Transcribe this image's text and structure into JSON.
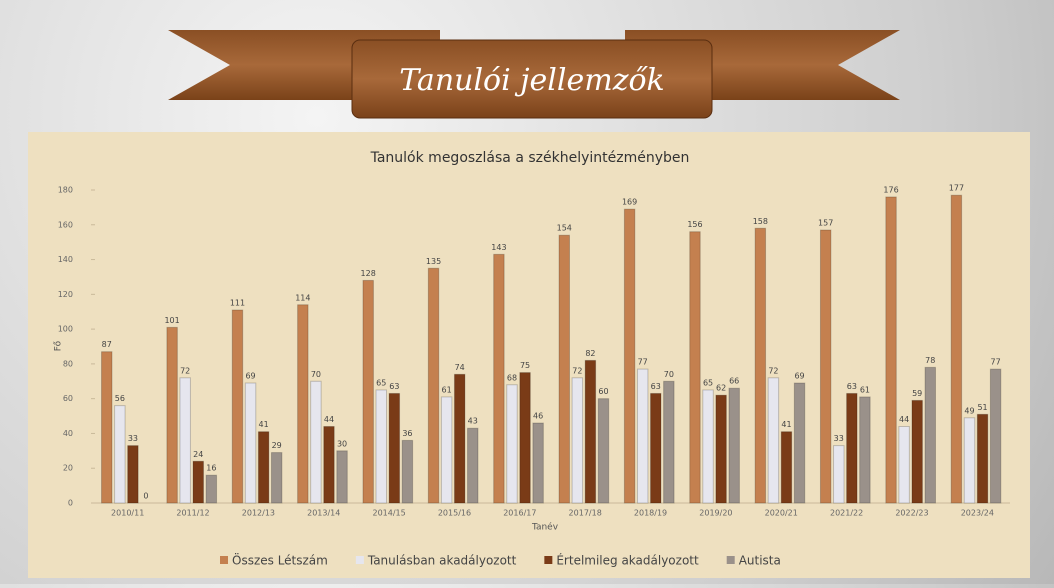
{
  "banner_title": "Tanulói jellemzők",
  "chart_data": {
    "type": "bar",
    "title": "Tanulók megoszlása a székhelyintézményben",
    "x_label": "Tanév",
    "y_label": "Fő",
    "categories": [
      "2010/11",
      "2011/12",
      "2012/13",
      "2013/14",
      "2014/15",
      "2015/16",
      "2016/17",
      "2017/18",
      "2018/19",
      "2019/20",
      "2020/21",
      "2021/22",
      "2022/23",
      "2023/24"
    ],
    "series": [
      {
        "name": "Összes Létszám",
        "color": "#c4804f",
        "values": [
          87,
          101,
          111,
          114,
          128,
          135,
          143,
          154,
          169,
          156,
          158,
          157,
          176,
          177
        ]
      },
      {
        "name": "Tanulásban akadályozott",
        "color": "#e6e6ee",
        "values": [
          56,
          72,
          69,
          70,
          65,
          61,
          68,
          72,
          77,
          65,
          72,
          33,
          44,
          49
        ]
      },
      {
        "name": "Értelmileg akadályozott",
        "color": "#7a3b17",
        "values": [
          33,
          24,
          41,
          44,
          63,
          74,
          75,
          82,
          63,
          62,
          41,
          63,
          59,
          51
        ]
      },
      {
        "name": "Autista",
        "color": "#9a918a",
        "values": [
          0,
          16,
          29,
          30,
          36,
          43,
          46,
          60,
          70,
          66,
          69,
          61,
          78,
          77
        ]
      }
    ],
    "ylim": [
      0,
      180
    ],
    "yticks": [
      0,
      20,
      40,
      60,
      80,
      100,
      120,
      140,
      160,
      180
    ],
    "legend": "bottom"
  }
}
